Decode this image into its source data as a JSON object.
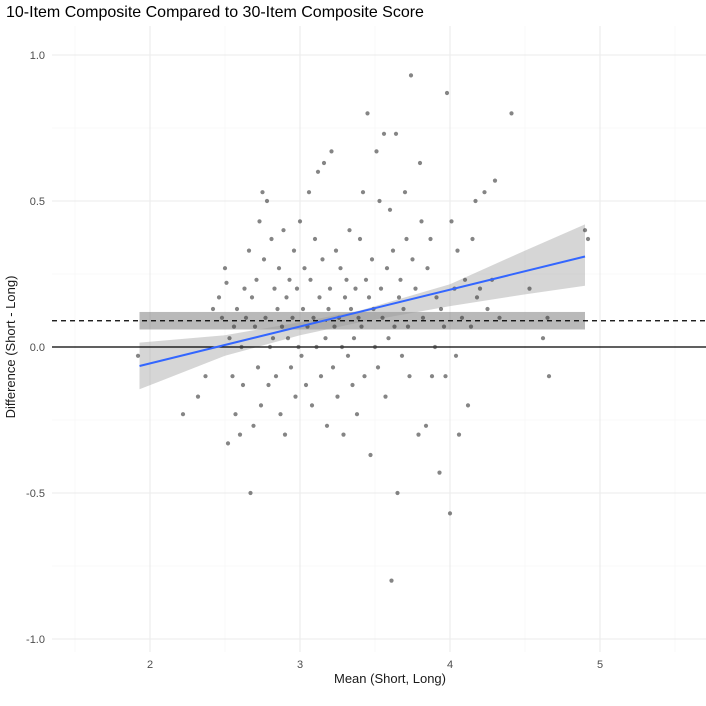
{
  "chart_data": {
    "type": "scatter",
    "title": "10-Item Composite Compared to 30-Item Composite Score",
    "xlabel": "Mean (Short, Long)",
    "ylabel": "Difference (Short - Long)",
    "xlim": [
      1.5,
      5.7
    ],
    "ylim": [
      -1.1,
      1.1
    ],
    "x_ticks": [
      2,
      3,
      4,
      5
    ],
    "x_tick_labels": [
      "2",
      "3",
      "4",
      "5"
    ],
    "y_ticks": [
      -1.0,
      -0.5,
      0.0,
      0.5,
      1.0
    ],
    "y_tick_labels": [
      "-1.0",
      "-0.5",
      "0.0",
      "0.5",
      "1.0"
    ],
    "grid": true,
    "colors": {
      "points": "#333333",
      "fit_line": "#3366ff",
      "confidence_band": "#999999",
      "mean_bias_band": "#808080",
      "reference_line": "#000000",
      "grid": "#ebebeb"
    },
    "reference_lines": [
      {
        "name": "zero",
        "y": 0.0,
        "style": "solid"
      },
      {
        "name": "mean-bias",
        "y": 0.09,
        "style": "dashed"
      }
    ],
    "mean_bias_band": {
      "x": [
        1.93,
        4.9
      ],
      "y": [
        0.06,
        0.12
      ]
    },
    "fit": {
      "x": [
        1.93,
        4.9
      ],
      "y": [
        -0.065,
        0.31
      ],
      "ci_x": [
        1.93,
        2.5,
        3.0,
        3.4,
        4.0,
        4.5,
        4.9
      ],
      "ci_lower": [
        -0.145,
        -0.03,
        0.04,
        0.085,
        0.14,
        0.18,
        0.21
      ],
      "ci_upper": [
        0.015,
        0.04,
        0.085,
        0.125,
        0.215,
        0.33,
        0.42
      ]
    },
    "series": [
      {
        "name": "observations",
        "points": [
          [
            1.92,
            -0.03
          ],
          [
            2.22,
            -0.23
          ],
          [
            2.32,
            -0.17
          ],
          [
            2.37,
            -0.1
          ],
          [
            2.42,
            0.13
          ],
          [
            2.46,
            0.17
          ],
          [
            2.48,
            0.1
          ],
          [
            2.5,
            0.27
          ],
          [
            2.51,
            0.22
          ],
          [
            2.52,
            -0.33
          ],
          [
            2.53,
            0.03
          ],
          [
            2.55,
            -0.1
          ],
          [
            2.56,
            0.07
          ],
          [
            2.57,
            -0.23
          ],
          [
            2.58,
            0.13
          ],
          [
            2.6,
            -0.3
          ],
          [
            2.61,
            0.0
          ],
          [
            2.62,
            -0.13
          ],
          [
            2.63,
            0.2
          ],
          [
            2.64,
            0.1
          ],
          [
            2.66,
            0.33
          ],
          [
            2.67,
            -0.5
          ],
          [
            2.68,
            0.17
          ],
          [
            2.69,
            -0.27
          ],
          [
            2.7,
            0.07
          ],
          [
            2.71,
            0.23
          ],
          [
            2.72,
            -0.07
          ],
          [
            2.73,
            0.43
          ],
          [
            2.74,
            -0.2
          ],
          [
            2.75,
            0.53
          ],
          [
            2.76,
            0.3
          ],
          [
            2.77,
            0.1
          ],
          [
            2.78,
            0.5
          ],
          [
            2.79,
            -0.13
          ],
          [
            2.8,
            0.0
          ],
          [
            2.81,
            0.37
          ],
          [
            2.82,
            0.03
          ],
          [
            2.83,
            0.2
          ],
          [
            2.84,
            -0.1
          ],
          [
            2.85,
            0.13
          ],
          [
            2.86,
            0.27
          ],
          [
            2.87,
            -0.23
          ],
          [
            2.88,
            0.07
          ],
          [
            2.89,
            0.4
          ],
          [
            2.9,
            -0.3
          ],
          [
            2.91,
            0.17
          ],
          [
            2.92,
            0.03
          ],
          [
            2.93,
            0.23
          ],
          [
            2.94,
            -0.07
          ],
          [
            2.95,
            0.1
          ],
          [
            2.96,
            0.33
          ],
          [
            2.97,
            -0.17
          ],
          [
            2.98,
            0.2
          ],
          [
            2.99,
            0.0
          ],
          [
            3.0,
            0.43
          ],
          [
            3.01,
            -0.03
          ],
          [
            3.02,
            0.13
          ],
          [
            3.03,
            0.27
          ],
          [
            3.04,
            -0.13
          ],
          [
            3.05,
            0.07
          ],
          [
            3.06,
            0.53
          ],
          [
            3.07,
            0.23
          ],
          [
            3.08,
            -0.2
          ],
          [
            3.09,
            0.1
          ],
          [
            3.1,
            0.37
          ],
          [
            3.11,
            0.0
          ],
          [
            3.12,
            0.6
          ],
          [
            3.13,
            0.17
          ],
          [
            3.14,
            -0.1
          ],
          [
            3.15,
            0.3
          ],
          [
            3.16,
            0.63
          ],
          [
            3.17,
            0.03
          ],
          [
            3.18,
            -0.27
          ],
          [
            3.19,
            0.13
          ],
          [
            3.2,
            0.2
          ],
          [
            3.21,
            0.67
          ],
          [
            3.22,
            -0.07
          ],
          [
            3.23,
            0.07
          ],
          [
            3.24,
            0.33
          ],
          [
            3.25,
            -0.17
          ],
          [
            3.26,
            0.1
          ],
          [
            3.27,
            0.27
          ],
          [
            3.28,
            0.0
          ],
          [
            3.29,
            -0.3
          ],
          [
            3.3,
            0.17
          ],
          [
            3.31,
            0.23
          ],
          [
            3.32,
            -0.03
          ],
          [
            3.33,
            0.4
          ],
          [
            3.34,
            0.13
          ],
          [
            3.35,
            -0.13
          ],
          [
            3.36,
            0.03
          ],
          [
            3.37,
            0.2
          ],
          [
            3.38,
            -0.23
          ],
          [
            3.39,
            0.1
          ],
          [
            3.4,
            0.37
          ],
          [
            3.41,
            0.07
          ],
          [
            3.42,
            0.53
          ],
          [
            3.43,
            -0.1
          ],
          [
            3.44,
            0.23
          ],
          [
            3.45,
            0.8
          ],
          [
            3.46,
            0.17
          ],
          [
            3.47,
            -0.37
          ],
          [
            3.48,
            0.3
          ],
          [
            3.49,
            0.13
          ],
          [
            3.5,
            0.0
          ],
          [
            3.51,
            0.67
          ],
          [
            3.52,
            -0.07
          ],
          [
            3.53,
            0.5
          ],
          [
            3.54,
            0.2
          ],
          [
            3.55,
            0.1
          ],
          [
            3.56,
            0.73
          ],
          [
            3.57,
            -0.17
          ],
          [
            3.58,
            0.27
          ],
          [
            3.59,
            0.03
          ],
          [
            3.6,
            0.47
          ],
          [
            3.61,
            -0.8
          ],
          [
            3.62,
            0.33
          ],
          [
            3.63,
            0.07
          ],
          [
            3.64,
            0.73
          ],
          [
            3.65,
            -0.5
          ],
          [
            3.66,
            0.17
          ],
          [
            3.67,
            0.23
          ],
          [
            3.68,
            -0.03
          ],
          [
            3.69,
            0.13
          ],
          [
            3.7,
            0.53
          ],
          [
            3.71,
            0.37
          ],
          [
            3.72,
            0.07
          ],
          [
            3.73,
            -0.1
          ],
          [
            3.74,
            0.93
          ],
          [
            3.75,
            0.3
          ],
          [
            3.77,
            0.2
          ],
          [
            3.79,
            -0.3
          ],
          [
            3.8,
            0.63
          ],
          [
            3.81,
            0.43
          ],
          [
            3.82,
            0.1
          ],
          [
            3.84,
            -0.27
          ],
          [
            3.85,
            0.27
          ],
          [
            3.87,
            0.37
          ],
          [
            3.88,
            -0.1
          ],
          [
            3.9,
            0.0
          ],
          [
            3.91,
            0.17
          ],
          [
            3.93,
            -0.43
          ],
          [
            3.94,
            0.13
          ],
          [
            3.96,
            0.07
          ],
          [
            3.97,
            -0.1
          ],
          [
            3.98,
            0.87
          ],
          [
            4.0,
            -0.57
          ],
          [
            4.01,
            0.43
          ],
          [
            4.03,
            0.2
          ],
          [
            4.04,
            -0.03
          ],
          [
            4.05,
            0.33
          ],
          [
            4.06,
            -0.3
          ],
          [
            4.08,
            0.1
          ],
          [
            4.1,
            0.23
          ],
          [
            4.12,
            -0.2
          ],
          [
            4.14,
            0.07
          ],
          [
            4.15,
            0.37
          ],
          [
            4.17,
            0.5
          ],
          [
            4.18,
            0.17
          ],
          [
            4.2,
            0.2
          ],
          [
            4.23,
            0.53
          ],
          [
            4.25,
            0.13
          ],
          [
            4.28,
            0.23
          ],
          [
            4.3,
            0.57
          ],
          [
            4.33,
            0.1
          ],
          [
            4.41,
            0.8
          ],
          [
            4.53,
            0.2
          ],
          [
            4.62,
            0.03
          ],
          [
            4.65,
            0.1
          ],
          [
            4.66,
            -0.1
          ],
          [
            4.9,
            0.4
          ],
          [
            4.92,
            0.37
          ]
        ]
      }
    ]
  }
}
